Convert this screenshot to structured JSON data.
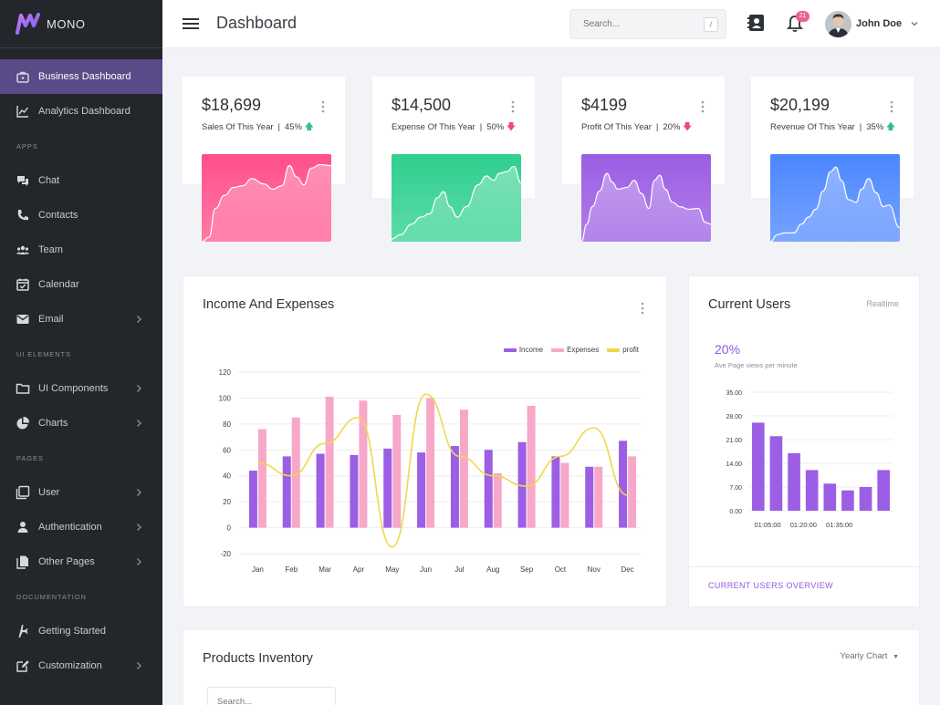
{
  "brand": {
    "name": "MONO"
  },
  "sidebar": {
    "items": [
      {
        "label": "Business Dashboard",
        "icon": "briefcase-icon",
        "active": true
      },
      {
        "label": "Analytics Dashboard",
        "icon": "chart-line-icon"
      },
      {
        "section": "APPS"
      },
      {
        "label": "Chat",
        "icon": "chat-icon"
      },
      {
        "label": "Contacts",
        "icon": "phone-icon"
      },
      {
        "label": "Team",
        "icon": "team-icon"
      },
      {
        "label": "Calendar",
        "icon": "calendar-icon"
      },
      {
        "label": "Email",
        "icon": "email-icon",
        "chevron": true
      },
      {
        "section": "UI ELEMENTS"
      },
      {
        "label": "UI Components",
        "icon": "folder-icon",
        "chevron": true
      },
      {
        "label": "Charts",
        "icon": "pie-chart-icon",
        "chevron": true
      },
      {
        "section": "PAGES"
      },
      {
        "label": "User",
        "icon": "user-pages-icon",
        "chevron": true
      },
      {
        "label": "Authentication",
        "icon": "person-icon",
        "chevron": true
      },
      {
        "label": "Other Pages",
        "icon": "file-icon",
        "chevron": true
      },
      {
        "section": "DOCUMENTATION"
      },
      {
        "label": "Getting Started",
        "icon": "airplane-icon"
      },
      {
        "label": "Customization",
        "icon": "edit-icon",
        "chevron": true
      }
    ]
  },
  "header": {
    "title": "Dashboard",
    "search_placeholder": "Search...",
    "search_shortcut": "/",
    "notification_count": "21",
    "user_name": "John Doe"
  },
  "stats": [
    {
      "value": "$18,699",
      "label": "Sales Of This Year",
      "pct": "45%",
      "trend": "up",
      "color_top": "#ff4f8b",
      "color_bottom": "#ff7aa5"
    },
    {
      "value": "$14,500",
      "label": "Expense Of This Year",
      "pct": "50%",
      "trend": "down",
      "color_top": "#2fcf8e",
      "color_bottom": "#5cdba7"
    },
    {
      "value": "$4199",
      "label": "Profit Of This Year",
      "pct": "20%",
      "trend": "down",
      "color_top": "#9b5ee4",
      "color_bottom": "#b17de9"
    },
    {
      "value": "$20,199",
      "label": "Revenue Of This Year",
      "pct": "35%",
      "trend": "up",
      "color_top": "#4b86ff",
      "color_bottom": "#76a3ff"
    }
  ],
  "income_card": {
    "title": "Income And Expenses"
  },
  "users_card": {
    "title": "Current Users",
    "realtime": "Realtime",
    "pct": "20%",
    "sub": "Ave Page views per minute",
    "link": "CURRENT USERS OVERVIEW"
  },
  "products": {
    "title": "Products Inventory",
    "filter": "Yearly Chart",
    "search_placeholder": "Search..."
  },
  "chart_data": [
    {
      "type": "bar",
      "title": "Income And Expenses",
      "categories": [
        "Jan",
        "Feb",
        "Mar",
        "Apr",
        "May",
        "Jun",
        "Jul",
        "Aug",
        "Sep",
        "Oct",
        "Nov",
        "Dec"
      ],
      "series": [
        {
          "name": "Income",
          "type": "bar",
          "color": "#9b5ee4",
          "values": [
            44,
            55,
            57,
            56,
            61,
            58,
            63,
            60,
            66,
            55,
            47,
            67
          ]
        },
        {
          "name": "Expenses",
          "type": "bar",
          "color": "#f7a8c8",
          "values": [
            76,
            85,
            101,
            98,
            87,
            100,
            91,
            42,
            94,
            50,
            47,
            55
          ]
        },
        {
          "name": "profit",
          "type": "line",
          "color": "#f1d74a",
          "values": [
            50,
            40,
            65,
            85,
            -15,
            103,
            55,
            40,
            32,
            55,
            77,
            25
          ]
        }
      ],
      "ylim": [
        -20,
        120
      ],
      "yticks": [
        -20,
        0,
        20,
        40,
        60,
        80,
        100,
        120
      ],
      "grid": true,
      "legend": "top-right"
    },
    {
      "type": "bar",
      "title": "Current Users",
      "x_ticks": [
        "01:05:00",
        "01:20:00",
        "01:35:00"
      ],
      "series": [
        {
          "color": "#9b5ee4",
          "values": [
            26,
            22,
            17,
            12,
            8,
            6,
            7,
            12
          ]
        }
      ],
      "ylim": [
        0,
        35
      ],
      "yticks": [
        "0.00",
        "7.00",
        "14.00",
        "21.00",
        "28.00",
        "35.00"
      ],
      "grid": true
    }
  ]
}
